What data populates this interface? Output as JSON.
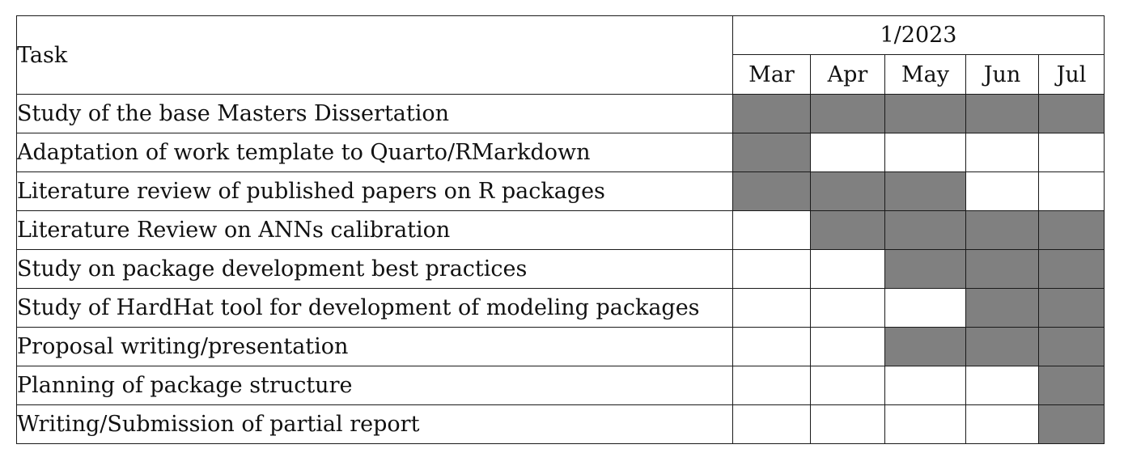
{
  "table": {
    "task_header": "Task",
    "period_header": "1/2023",
    "months": [
      "Mar",
      "Apr",
      "May",
      "Jun",
      "Jul"
    ],
    "fill_color": "#808080",
    "rows": [
      {
        "task": "Study of the base Masters Dissertation",
        "active": [
          true,
          true,
          true,
          true,
          true
        ]
      },
      {
        "task": "Adaptation of work template to Quarto/RMarkdown",
        "active": [
          true,
          false,
          false,
          false,
          false
        ]
      },
      {
        "task": "Literature review of published papers on R packages",
        "active": [
          true,
          true,
          true,
          false,
          false
        ]
      },
      {
        "task": "Literature Review on ANNs calibration",
        "active": [
          false,
          true,
          true,
          true,
          true
        ]
      },
      {
        "task": "Study on package development best practices",
        "active": [
          false,
          false,
          true,
          true,
          true
        ]
      },
      {
        "task": "Study of HardHat tool for development of modeling packages",
        "active": [
          false,
          false,
          false,
          true,
          true
        ]
      },
      {
        "task": "Proposal writing/presentation",
        "active": [
          false,
          false,
          true,
          true,
          true
        ]
      },
      {
        "task": "Planning of package structure",
        "active": [
          false,
          false,
          false,
          false,
          true
        ]
      },
      {
        "task": "Writing/Submission of partial report",
        "active": [
          false,
          false,
          false,
          false,
          true
        ]
      }
    ]
  }
}
